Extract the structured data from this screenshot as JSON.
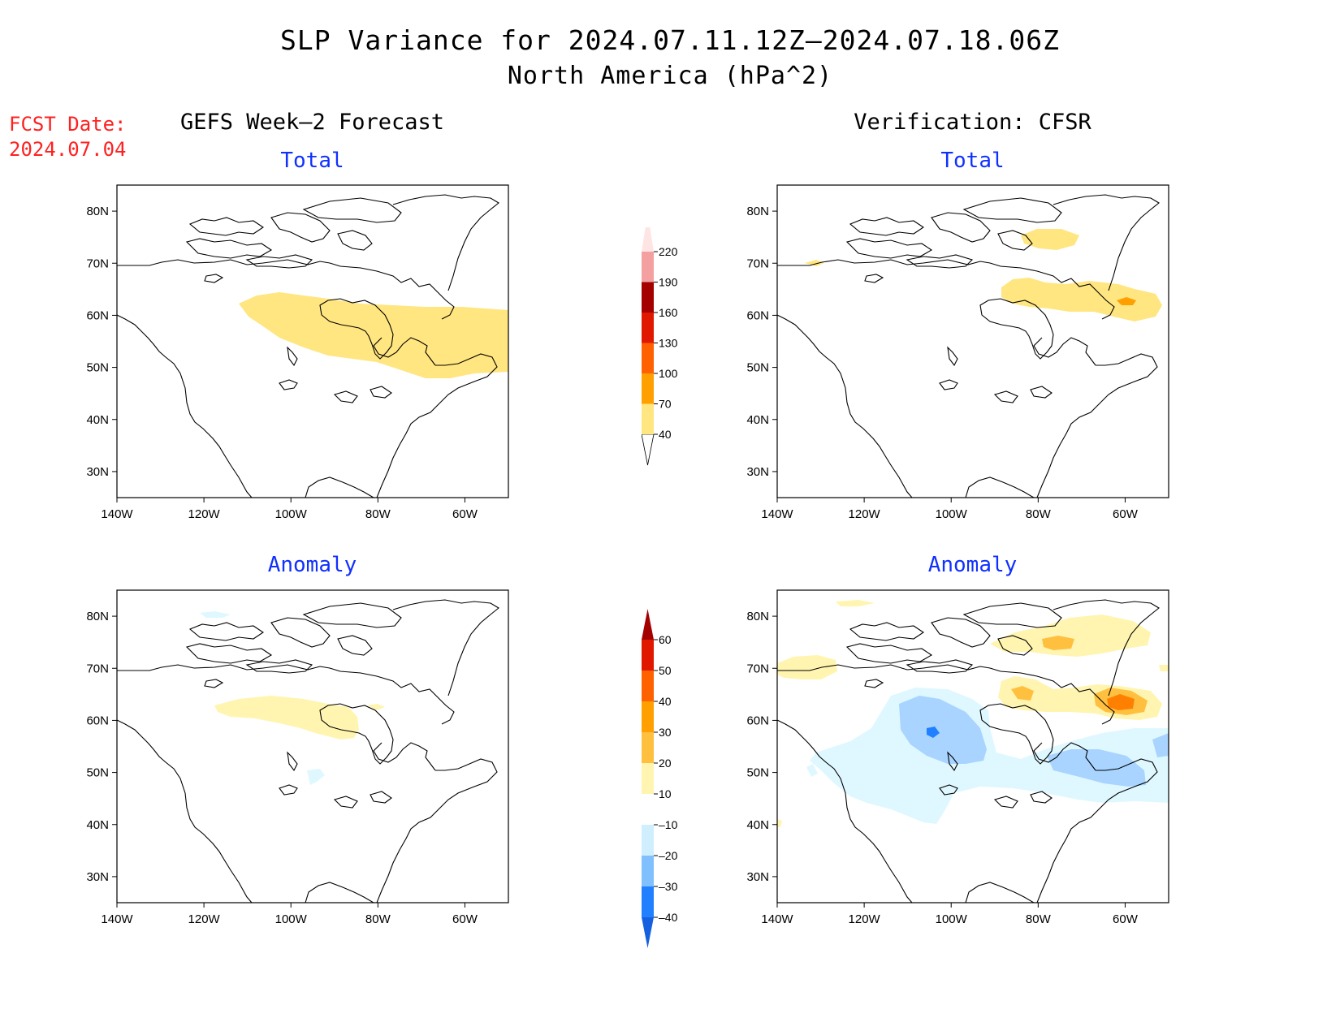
{
  "title": "SLP Variance for 2024.07.11.12Z–2024.07.18.06Z",
  "subtitle": "North America (hPa^2)",
  "fcst_label": "FCST Date:",
  "fcst_date": "2024.07.04",
  "left_column_title": "GEFS Week–2 Forecast",
  "right_column_title": "Verification: CFSR",
  "panel_titles": {
    "total": "Total",
    "anomaly": "Anomaly"
  },
  "map": {
    "lon_labels": [
      "140W",
      "120W",
      "100W",
      "80W",
      "60W"
    ],
    "lat_labels": [
      "80N",
      "70N",
      "60N",
      "50N",
      "40N",
      "30N"
    ],
    "lon_range": [
      -140,
      -50
    ],
    "lat_range": [
      25,
      85
    ]
  },
  "total_colorbar": {
    "levels": [
      "40",
      "70",
      "100",
      "130",
      "160",
      "190",
      "220"
    ],
    "colors": [
      "#ffe680",
      "#ffa000",
      "#ff6000",
      "#e01800",
      "#a50000",
      "#f4a0a0",
      "#ffe4e4"
    ]
  },
  "anomaly_colorbar": {
    "levels": [
      "–40",
      "–30",
      "–20",
      "–10",
      "10",
      "20",
      "30",
      "40",
      "50",
      "60"
    ],
    "colors": [
      "#1560e0",
      "#2080ff",
      "#80c0ff",
      "#cfefff",
      "#ffffff",
      "#fff5b0",
      "#ffc040",
      "#ffa000",
      "#ff6000",
      "#e01800",
      "#a50000"
    ]
  },
  "fill_colors": {
    "pos1": "#fff5b0",
    "pos2": "#ffc040",
    "pos3": "#ff8000",
    "neg1": "#dff8ff",
    "neg2": "#a8d4ff",
    "neg3": "#2080ff",
    "total1": "#ffe680"
  }
}
